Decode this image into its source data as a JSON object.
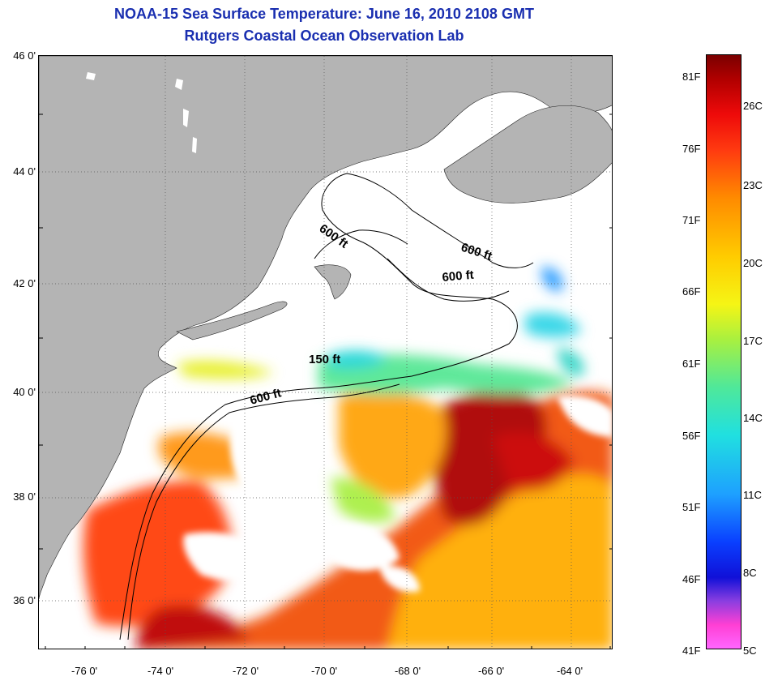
{
  "title": {
    "line1": "NOAA-15 Sea Surface Temperature:  June 16, 2010 2108 GMT",
    "line2": "Rutgers Coastal Ocean Observation Lab"
  },
  "map": {
    "lat_labels": [
      "46 0'",
      "44 0'",
      "42 0'",
      "40 0'",
      "38 0'",
      "36 0'"
    ],
    "lon_labels": [
      "-76 0'",
      "-74 0'",
      "-72 0'",
      "-70 0'",
      "-68 0'",
      "-66 0'",
      "-64 0'"
    ],
    "contour_labels": [
      "600 ft",
      "600 ft",
      "600 ft",
      "150 ft",
      "600 ft"
    ],
    "land_color": "#b4b4b4",
    "no_data_color": "#ffffff"
  },
  "colorbar": {
    "fahrenheit_labels": [
      "81F",
      "76F",
      "71F",
      "66F",
      "61F",
      "56F",
      "51F",
      "46F",
      "41F"
    ],
    "celsius_labels": [
      "26C",
      "23C",
      "20C",
      "17C",
      "14C",
      "11C",
      "8C",
      "5C"
    ]
  }
}
